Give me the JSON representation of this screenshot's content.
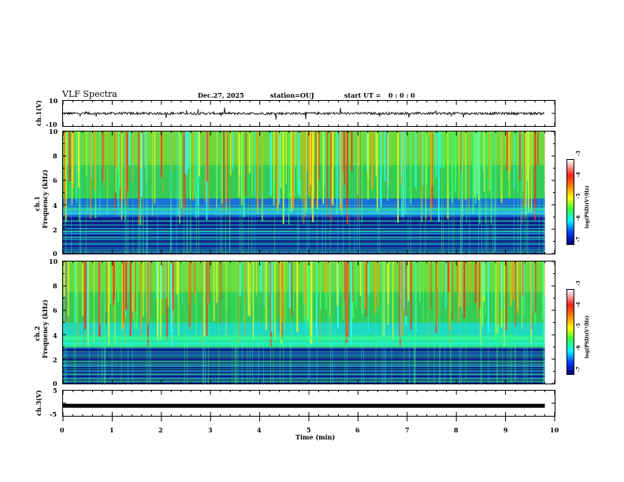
{
  "header": {
    "title": "VLF Spectra",
    "date": "Dec.27, 2025",
    "station": "station=OUJ",
    "start_label": "start  UT = ",
    "start_time": "0 : 0 : 0"
  },
  "panels": {
    "ch1_wave": {
      "ylabel": "ch.1(V)",
      "ticks": [
        "10",
        "-10"
      ]
    },
    "ch1_spec": {
      "ylabel_ch": "ch.1",
      "ylabel": "Frequency (kHz)",
      "ticks": [
        "10",
        "8",
        "6",
        "4",
        "2",
        "0"
      ]
    },
    "ch2_spec": {
      "ylabel_ch": "ch.2",
      "ylabel": "Frequency (kHz)",
      "ticks": [
        "10",
        "8",
        "6",
        "4",
        "2",
        "0"
      ]
    },
    "ch3_wave": {
      "ylabel": "ch.3(V)",
      "ticks": [
        "5",
        "-5"
      ]
    }
  },
  "colorbar1": {
    "label": "log(PSD)(V²/Hz)",
    "ticks": [
      "-3",
      "-4",
      "-5",
      "-6",
      "-7"
    ]
  },
  "colorbar2": {
    "label": "log(PSD)(V²/Hz)",
    "ticks": [
      "-3",
      "-4",
      "-5",
      "-6",
      "-7"
    ]
  },
  "xaxis": {
    "label": "Time (min)",
    "ticks": [
      "0",
      "1",
      "2",
      "3",
      "4",
      "5",
      "6",
      "7",
      "8",
      "9",
      "10"
    ]
  },
  "chart_data": [
    {
      "type": "line",
      "title": "VLF Spectra",
      "xlabel": "Time (min)",
      "ylabel": "ch.1(V)",
      "xlim": [
        0,
        10
      ],
      "ylim": [
        -10,
        10
      ],
      "series": [
        {
          "name": "ch.1 waveform",
          "baseline": 0,
          "noise_amplitude": 2
        }
      ]
    },
    {
      "type": "heatmap",
      "xlabel": "Time (min)",
      "ylabel": "Frequency (kHz)",
      "xlim": [
        0,
        10
      ],
      "ylim": [
        0,
        10
      ],
      "data_end_time": 9.8,
      "color_scale": "log(PSD)(V²/Hz)",
      "color_range": [
        -7,
        -3
      ],
      "series": [
        {
          "name": "ch.1 spectrogram"
        }
      ]
    },
    {
      "type": "heatmap",
      "xlabel": "Time (min)",
      "ylabel": "Frequency (kHz)",
      "xlim": [
        0,
        10
      ],
      "ylim": [
        0,
        10
      ],
      "data_end_time": 9.8,
      "color_scale": "log(PSD)(V²/Hz)",
      "color_range": [
        -7,
        -3
      ],
      "series": [
        {
          "name": "ch.2 spectrogram"
        }
      ]
    },
    {
      "type": "line",
      "xlabel": "Time (min)",
      "ylabel": "ch.3(V)",
      "xlim": [
        0,
        10
      ],
      "ylim": [
        -5,
        5
      ],
      "series": [
        {
          "name": "ch.3 waveform",
          "baseline": -1
        }
      ]
    }
  ]
}
